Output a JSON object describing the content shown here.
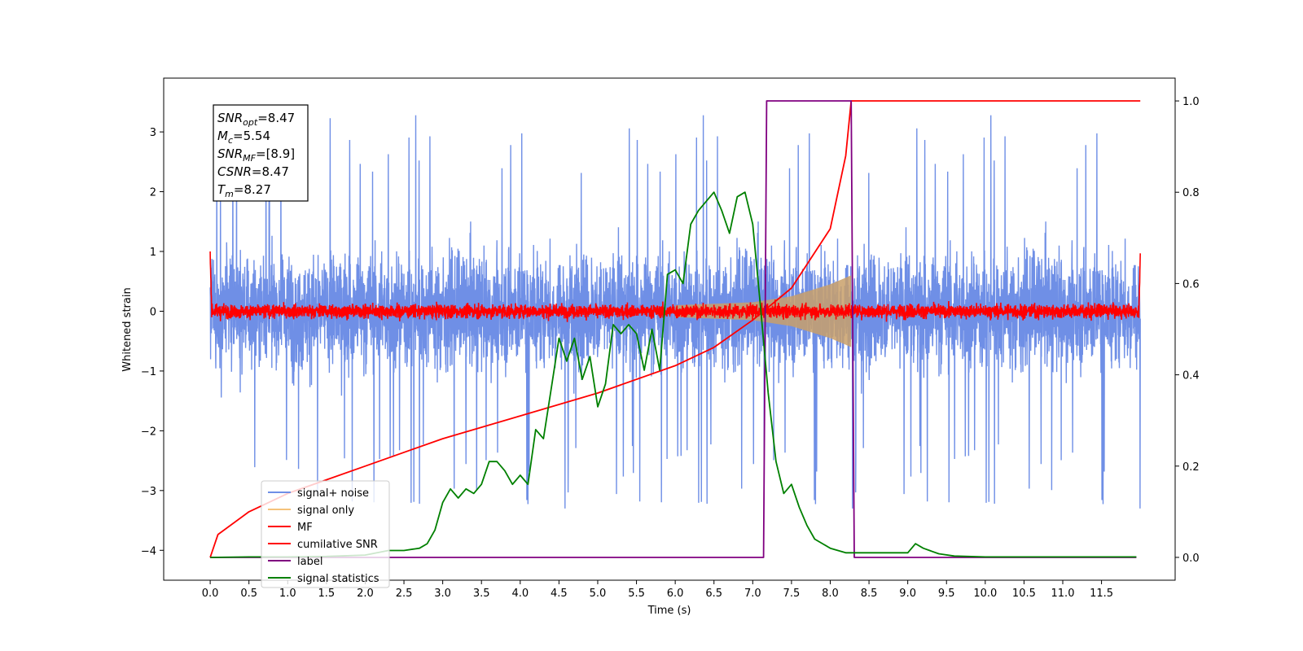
{
  "chart_data": {
    "type": "line",
    "xlabel": "Time (s)",
    "ylabel": "Whitened strain",
    "xlim": [
      -0.6,
      12.45
    ],
    "ylim_left": [
      -4.5,
      3.9
    ],
    "ylim_right": [
      -0.05,
      1.05
    ],
    "x_ticks": [
      0.0,
      0.5,
      1.0,
      1.5,
      2.0,
      2.5,
      3.0,
      3.5,
      4.0,
      4.5,
      5.0,
      5.5,
      6.0,
      6.5,
      7.0,
      7.5,
      8.0,
      8.5,
      9.0,
      9.5,
      10.0,
      10.5,
      11.0,
      11.5
    ],
    "x_tick_labels": [
      "0.0",
      "0.5",
      "1.0",
      "1.5",
      "2.0",
      "2.5",
      "3.0",
      "3.5",
      "4.0",
      "4.5",
      "5.0",
      "5.5",
      "6.0",
      "6.5",
      "7.0",
      "7.5",
      "8.0",
      "8.5",
      "9.0",
      "9.5",
      "10.0",
      "10.5",
      "11.0",
      "11.5"
    ],
    "y_left_ticks": [
      3,
      2,
      1,
      0,
      -1,
      -2,
      -3,
      -4
    ],
    "y_left_tick_labels": [
      "3",
      "2",
      "1",
      "0",
      "−1",
      "−2",
      "−3",
      "−4"
    ],
    "y_right_ticks": [
      1.0,
      0.8,
      0.6,
      0.4,
      0.2,
      0.0
    ],
    "y_right_tick_labels": [
      "1.0",
      "0.8",
      "0.6",
      "0.4",
      "0.2",
      "0.0"
    ],
    "series": [
      {
        "name": "signal+ noise",
        "color": "#6f8fe6",
        "axis": "left",
        "kind": "noise",
        "x_range": [
          0,
          12.0
        ],
        "amplitude": 1.2,
        "peak_max": 3.55,
        "peak_min": -4.0
      },
      {
        "name": "signal only",
        "color": "#f5c27a",
        "axis": "left",
        "kind": "chirp",
        "x_range": [
          6.0,
          8.27
        ],
        "envelope": [
          [
            6.0,
            0.1
          ],
          [
            7.0,
            0.15
          ],
          [
            7.5,
            0.25
          ],
          [
            8.0,
            0.45
          ],
          [
            8.27,
            0.6
          ]
        ]
      },
      {
        "name": "MF",
        "color": "#ff0000",
        "axis": "left",
        "kind": "noise",
        "x_range": [
          0,
          12.0
        ],
        "amplitude": 0.1,
        "start_value": 1.0,
        "end_value": 0.85
      },
      {
        "name": "cumilative SNR",
        "color": "#ff0000",
        "axis": "right",
        "points": [
          [
            0.0,
            0.0
          ],
          [
            0.1,
            0.05
          ],
          [
            0.5,
            0.1
          ],
          [
            1.0,
            0.14
          ],
          [
            2.0,
            0.2
          ],
          [
            3.0,
            0.26
          ],
          [
            4.0,
            0.31
          ],
          [
            5.0,
            0.36
          ],
          [
            6.0,
            0.42
          ],
          [
            6.5,
            0.46
          ],
          [
            7.0,
            0.52
          ],
          [
            7.5,
            0.59
          ],
          [
            8.0,
            0.72
          ],
          [
            8.2,
            0.88
          ],
          [
            8.27,
            1.0
          ],
          [
            12.0,
            1.0
          ]
        ]
      },
      {
        "name": "label",
        "color": "#800080",
        "axis": "right",
        "points": [
          [
            0.0,
            0.0
          ],
          [
            7.14,
            0.0
          ],
          [
            7.18,
            1.0
          ],
          [
            8.27,
            1.0
          ],
          [
            8.31,
            0.0
          ],
          [
            11.95,
            0.0
          ]
        ]
      },
      {
        "name": "signal statistics",
        "color": "#008000",
        "axis": "right",
        "points": [
          [
            0.0,
            0.0
          ],
          [
            0.5,
            0.001
          ],
          [
            1.0,
            0.001
          ],
          [
            1.5,
            0.002
          ],
          [
            2.0,
            0.005
          ],
          [
            2.3,
            0.015
          ],
          [
            2.5,
            0.015
          ],
          [
            2.7,
            0.02
          ],
          [
            2.8,
            0.03
          ],
          [
            2.9,
            0.06
          ],
          [
            3.0,
            0.12
          ],
          [
            3.1,
            0.15
          ],
          [
            3.2,
            0.13
          ],
          [
            3.3,
            0.15
          ],
          [
            3.4,
            0.14
          ],
          [
            3.5,
            0.16
          ],
          [
            3.6,
            0.21
          ],
          [
            3.7,
            0.21
          ],
          [
            3.8,
            0.19
          ],
          [
            3.9,
            0.16
          ],
          [
            4.0,
            0.18
          ],
          [
            4.1,
            0.16
          ],
          [
            4.2,
            0.28
          ],
          [
            4.3,
            0.26
          ],
          [
            4.4,
            0.37
          ],
          [
            4.5,
            0.48
          ],
          [
            4.6,
            0.43
          ],
          [
            4.7,
            0.48
          ],
          [
            4.8,
            0.39
          ],
          [
            4.9,
            0.44
          ],
          [
            5.0,
            0.33
          ],
          [
            5.1,
            0.38
          ],
          [
            5.2,
            0.51
          ],
          [
            5.3,
            0.49
          ],
          [
            5.4,
            0.51
          ],
          [
            5.5,
            0.49
          ],
          [
            5.6,
            0.41
          ],
          [
            5.7,
            0.5
          ],
          [
            5.8,
            0.41
          ],
          [
            5.9,
            0.62
          ],
          [
            6.0,
            0.63
          ],
          [
            6.1,
            0.6
          ],
          [
            6.2,
            0.73
          ],
          [
            6.3,
            0.76
          ],
          [
            6.4,
            0.78
          ],
          [
            6.5,
            0.8
          ],
          [
            6.6,
            0.76
          ],
          [
            6.7,
            0.71
          ],
          [
            6.8,
            0.79
          ],
          [
            6.9,
            0.8
          ],
          [
            7.0,
            0.73
          ],
          [
            7.1,
            0.55
          ],
          [
            7.2,
            0.36
          ],
          [
            7.3,
            0.21
          ],
          [
            7.4,
            0.14
          ],
          [
            7.5,
            0.16
          ],
          [
            7.6,
            0.11
          ],
          [
            7.7,
            0.07
          ],
          [
            7.8,
            0.04
          ],
          [
            7.9,
            0.03
          ],
          [
            8.0,
            0.02
          ],
          [
            8.2,
            0.01
          ],
          [
            8.5,
            0.01
          ],
          [
            8.8,
            0.01
          ],
          [
            9.0,
            0.01
          ],
          [
            9.1,
            0.03
          ],
          [
            9.2,
            0.02
          ],
          [
            9.4,
            0.008
          ],
          [
            9.6,
            0.003
          ],
          [
            10.0,
            0.001
          ],
          [
            11.0,
            0.001
          ],
          [
            11.95,
            0.001
          ]
        ]
      }
    ],
    "legend": {
      "placement": "lower left",
      "entries": [
        {
          "label": "signal+ noise",
          "color": "#6f8fe6"
        },
        {
          "label": "signal only",
          "color": "#f5c27a"
        },
        {
          "label": "MF",
          "color": "#ff0000"
        },
        {
          "label": "cumilative SNR",
          "color": "#ff0000"
        },
        {
          "label": "label",
          "color": "#800080"
        },
        {
          "label": "signal statistics",
          "color": "#008000"
        }
      ]
    },
    "annotations": [
      {
        "base": "SNR",
        "sub": "opt",
        "value": "=8.47"
      },
      {
        "base": "M",
        "sub": "c",
        "value": "=5.54"
      },
      {
        "base": "SNR",
        "sub": "MF",
        "value": "=[8.9]"
      },
      {
        "base": "CSNR",
        "sub": "",
        "value": "=8.47"
      },
      {
        "base": "T",
        "sub": "m",
        "value": "=8.27"
      }
    ],
    "grid": false
  }
}
